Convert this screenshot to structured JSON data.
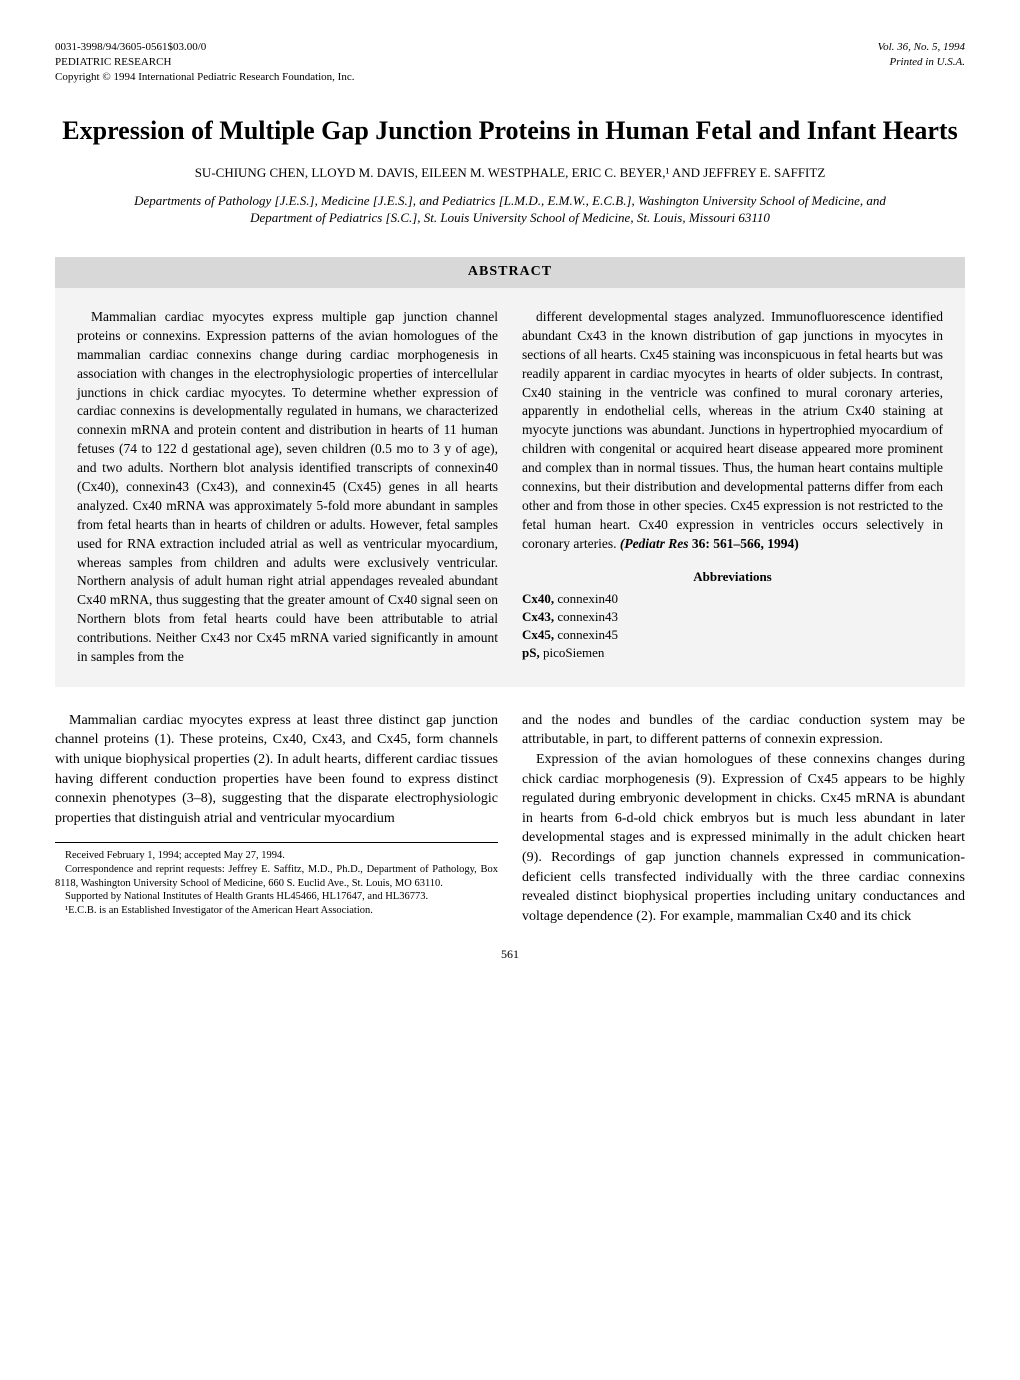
{
  "header": {
    "left_line1": "0031-3998/94/3605-0561$03.00/0",
    "left_line2": "PEDIATRIC RESEARCH",
    "left_line3": "Copyright © 1994 International Pediatric Research Foundation, Inc.",
    "right_line1": "Vol. 36, No. 5, 1994",
    "right_line2": "Printed in U.S.A."
  },
  "title": "Expression of Multiple Gap Junction Proteins in Human Fetal and Infant Hearts",
  "authors": "SU-CHIUNG CHEN, LLOYD M. DAVIS, EILEEN M. WESTPHALE, ERIC C. BEYER,¹ AND JEFFREY E. SAFFITZ",
  "affiliations": "Departments of Pathology [J.E.S.], Medicine [J.E.S.], and Pediatrics [L.M.D., E.M.W., E.C.B.], Washington University School of Medicine, and Department of Pediatrics [S.C.], St. Louis University School of Medicine, St. Louis, Missouri 63110",
  "abstract": {
    "heading": "ABSTRACT",
    "left_text": "Mammalian cardiac myocytes express multiple gap junction channel proteins or connexins. Expression patterns of the avian homologues of the mammalian cardiac connexins change during cardiac morphogenesis in association with changes in the electrophysiologic properties of intercellular junctions in chick cardiac myocytes. To determine whether expression of cardiac connexins is developmentally regulated in humans, we characterized connexin mRNA and protein content and distribution in hearts of 11 human fetuses (74 to 122 d gestational age), seven children (0.5 mo to 3 y of age), and two adults. Northern blot analysis identified transcripts of connexin40 (Cx40), connexin43 (Cx43), and connexin45 (Cx45) genes in all hearts analyzed. Cx40 mRNA was approximately 5-fold more abundant in samples from fetal hearts than in hearts of children or adults. However, fetal samples used for RNA extraction included atrial as well as ventricular myocardium, whereas samples from children and adults were exclusively ventricular. Northern analysis of adult human right atrial appendages revealed abundant Cx40 mRNA, thus suggesting that the greater amount of Cx40 signal seen on Northern blots from fetal hearts could have been attributable to atrial contributions. Neither Cx43 nor Cx45 mRNA varied significantly in amount in samples from the",
    "right_text": "different developmental stages analyzed. Immunofluorescence identified abundant Cx43 in the known distribution of gap junctions in myocytes in sections of all hearts. Cx45 staining was inconspicuous in fetal hearts but was readily apparent in cardiac myocytes in hearts of older subjects. In contrast, Cx40 staining in the ventricle was confined to mural coronary arteries, apparently in endothelial cells, whereas in the atrium Cx40 staining at myocyte junctions was abundant. Junctions in hypertrophied myocardium of children with congenital or acquired heart disease appeared more prominent and complex than in normal tissues. Thus, the human heart contains multiple connexins, but their distribution and developmental patterns differ from each other and from those in other species. Cx45 expression is not restricted to the fetal human heart. Cx40 expression in ventricles occurs selectively in coronary arteries. ",
    "citation_label": "(Pediatr Res",
    "citation_rest": " 36: 561–566, 1994)"
  },
  "abbreviations": {
    "heading": "Abbreviations",
    "items": [
      {
        "term": "Cx40,",
        "def": " connexin40"
      },
      {
        "term": "Cx43,",
        "def": " connexin43"
      },
      {
        "term": "Cx45,",
        "def": " connexin45"
      },
      {
        "term": "pS,",
        "def": " picoSiemen"
      }
    ]
  },
  "body": {
    "left_para": "Mammalian cardiac myocytes express at least three distinct gap junction channel proteins (1). These proteins, Cx40, Cx43, and Cx45, form channels with unique biophysical properties (2). In adult hearts, different cardiac tissues having different conduction properties have been found to express distinct connexin phenotypes (3–8), suggesting that the disparate electrophysiologic properties that distinguish atrial and ventricular myocardium",
    "right_para1": "and the nodes and bundles of the cardiac conduction system may be attributable, in part, to different patterns of connexin expression.",
    "right_para2": "Expression of the avian homologues of these connexins changes during chick cardiac morphogenesis (9). Expression of Cx45 appears to be highly regulated during embryonic development in chicks. Cx45 mRNA is abundant in hearts from 6-d-old chick embryos but is much less abundant in later developmental stages and is expressed minimally in the adult chicken heart (9). Recordings of gap junction channels expressed in communication-deficient cells transfected individually with the three cardiac connexins revealed distinct biophysical properties including unitary conductances and voltage dependence (2). For example, mammalian Cx40 and its chick"
  },
  "footnotes": {
    "line1": "Received February 1, 1994; accepted May 27, 1994.",
    "line2": "Correspondence and reprint requests: Jeffrey E. Saffitz, M.D., Ph.D., Department of Pathology, Box 8118, Washington University School of Medicine, 660 S. Euclid Ave., St. Louis, MO 63110.",
    "line3": "Supported by National Institutes of Health Grants HL45466, HL17647, and HL36773.",
    "line4": "¹E.C.B. is an Established Investigator of the American Heart Association."
  },
  "page_number": "561"
}
